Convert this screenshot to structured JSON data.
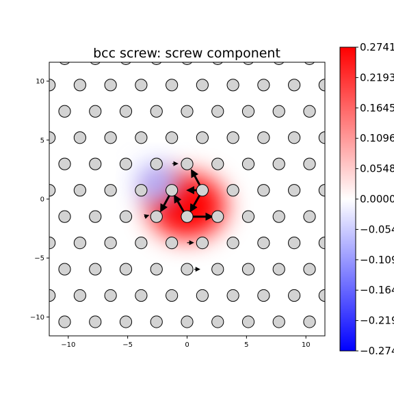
{
  "chart_data": {
    "type": "heatmap",
    "title": "bcc screw: screw component",
    "xlabel": "",
    "ylabel": "",
    "xlim": [
      -11.6,
      11.6
    ],
    "ylim": [
      -11.6,
      11.6
    ],
    "xticks": [
      -10,
      -5,
      0,
      5,
      10
    ],
    "yticks": [
      -10,
      -5,
      0,
      5,
      10
    ],
    "colormap": "bwr",
    "colors": {
      "max": "#ff0000",
      "mid": "#ffffff",
      "min": "#0000ff",
      "atom_fill": "#d3d3d3",
      "atom_edge": "#000000"
    },
    "colorbar": {
      "min": -0.2741,
      "max": 0.2741,
      "tick_labels": [
        "0.2741",
        "0.2193",
        "0.1645",
        "0.1096",
        "0.0548",
        "0.0000",
        "-0.0548",
        "-0.1096",
        "-0.1645",
        "-0.2193",
        "-0.2741"
      ]
    },
    "lattice": {
      "a1": [
        2.576,
        0.0
      ],
      "a2": [
        1.288,
        2.231
      ],
      "offset": [
        0.0,
        -1.487
      ],
      "extent": [
        -12,
        12
      ]
    },
    "field_blobs": [
      {
        "x": 0.0,
        "y": -0.6,
        "sx": 2.6,
        "sy": 2.2,
        "value": 0.27
      },
      {
        "x": -2.5,
        "y": 1.3,
        "sx": 1.4,
        "sy": 1.4,
        "value": -0.09
      }
    ],
    "core_arrows": [
      {
        "x": 0.0,
        "y": -1.49,
        "dx": 2.2,
        "dy": 0.0
      },
      {
        "x": -0.05,
        "y": -1.49,
        "dx": -1.05,
        "dy": 1.85
      },
      {
        "x": 1.3,
        "y": 0.75,
        "dx": -1.05,
        "dy": -1.85
      },
      {
        "x": 1.3,
        "y": 0.75,
        "dx": -1.1,
        "dy": 0.0
      },
      {
        "x": -1.25,
        "y": 0.75,
        "dx": -1.0,
        "dy": -1.85
      },
      {
        "x": 1.3,
        "y": 0.75,
        "dx": -0.95,
        "dy": 1.75
      }
    ],
    "secondary_arrows": [
      {
        "x": 0.0,
        "y": -3.7,
        "dx": 0.35,
        "dy": 0.0
      },
      {
        "x": 1.3,
        "y": -3.7,
        "dx": 0.25,
        "dy": 0.0
      },
      {
        "x": 0.6,
        "y": -5.95,
        "dx": 0.25,
        "dy": 0.0
      },
      {
        "x": -1.25,
        "y": 3.0,
        "dx": 0.25,
        "dy": 0.0
      },
      {
        "x": -3.6,
        "y": -1.5,
        "dx": 0.15,
        "dy": 0.05
      }
    ]
  }
}
